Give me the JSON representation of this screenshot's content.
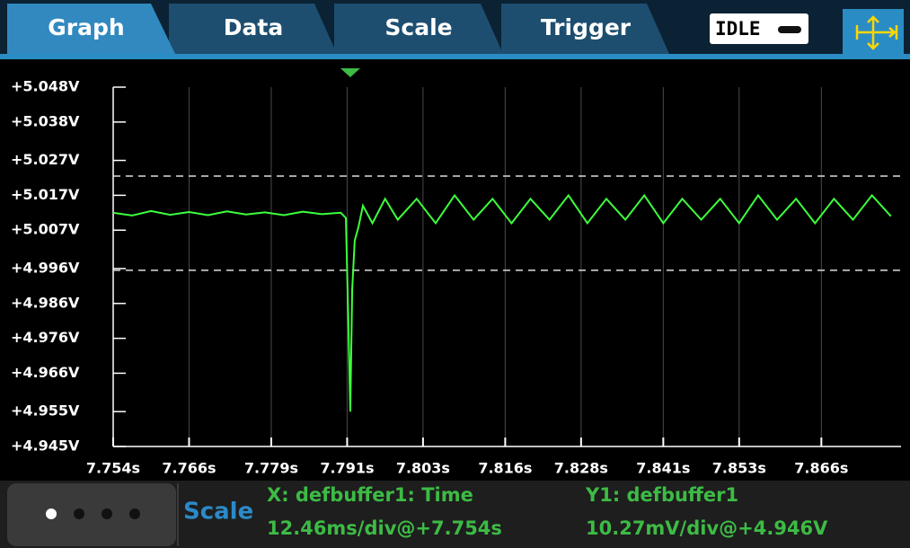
{
  "tabs": [
    "Graph",
    "Data",
    "Scale",
    "Trigger"
  ],
  "status": "IDLE",
  "chart_data": {
    "type": "line",
    "color": "#3dff3d",
    "grid": true,
    "xlim": [
      7.754,
      7.8786
    ],
    "ylim": [
      4.945,
      5.048
    ],
    "xticks": [
      {
        "value": 7.754,
        "label": "7.754s"
      },
      {
        "value": 7.766,
        "label": "7.766s"
      },
      {
        "value": 7.779,
        "label": "7.779s"
      },
      {
        "value": 7.791,
        "label": "7.791s"
      },
      {
        "value": 7.803,
        "label": "7.803s"
      },
      {
        "value": 7.816,
        "label": "7.816s"
      },
      {
        "value": 7.828,
        "label": "7.828s"
      },
      {
        "value": 7.841,
        "label": "7.841s"
      },
      {
        "value": 7.853,
        "label": "7.853s"
      },
      {
        "value": 7.866,
        "label": "7.866s"
      }
    ],
    "yticks": [
      {
        "value": 4.945,
        "label": "+4.945V"
      },
      {
        "value": 4.955,
        "label": "+4.955V"
      },
      {
        "value": 4.966,
        "label": "+4.966V"
      },
      {
        "value": 4.976,
        "label": "+4.976V"
      },
      {
        "value": 4.986,
        "label": "+4.986V"
      },
      {
        "value": 4.996,
        "label": "+4.996V"
      },
      {
        "value": 5.007,
        "label": "+5.007V"
      },
      {
        "value": 5.017,
        "label": "+5.017V"
      },
      {
        "value": 5.027,
        "label": "+5.027V"
      },
      {
        "value": 5.038,
        "label": "+5.038V"
      },
      {
        "value": 5.048,
        "label": "+5.048V"
      }
    ],
    "reference_lines": [
      5.0225,
      4.9955
    ],
    "trigger_x": 7.7915,
    "x": [
      7.754,
      7.757,
      7.76,
      7.763,
      7.766,
      7.769,
      7.772,
      7.775,
      7.778,
      7.781,
      7.784,
      7.787,
      7.79,
      7.7908,
      7.7912,
      7.7915,
      7.7918,
      7.7922,
      7.7928,
      7.7935,
      7.795,
      7.797,
      7.799,
      7.802,
      7.805,
      7.808,
      7.811,
      7.814,
      7.817,
      7.82,
      7.823,
      7.826,
      7.829,
      7.832,
      7.835,
      7.838,
      7.841,
      7.844,
      7.847,
      7.85,
      7.853,
      7.856,
      7.859,
      7.862,
      7.865,
      7.868,
      7.871,
      7.874,
      7.877
    ],
    "values": [
      5.012,
      5.0112,
      5.0125,
      5.0114,
      5.0122,
      5.0113,
      5.0124,
      5.0115,
      5.0121,
      5.0113,
      5.0123,
      5.0116,
      5.012,
      5.0105,
      4.98,
      4.955,
      4.99,
      5.004,
      5.008,
      5.014,
      5.009,
      5.016,
      5.01,
      5.016,
      5.009,
      5.017,
      5.01,
      5.016,
      5.009,
      5.016,
      5.01,
      5.017,
      5.009,
      5.016,
      5.01,
      5.017,
      5.009,
      5.016,
      5.01,
      5.016,
      5.009,
      5.017,
      5.01,
      5.016,
      5.009,
      5.016,
      5.01,
      5.017,
      5.011
    ]
  },
  "footer": {
    "label": "Scale",
    "x_axis": "X: defbuffer1: Time",
    "x_scale": "12.46ms/div@+7.754s",
    "y_axis": "Y1: defbuffer1",
    "y_scale": "10.27mV/div@+4.946V"
  }
}
